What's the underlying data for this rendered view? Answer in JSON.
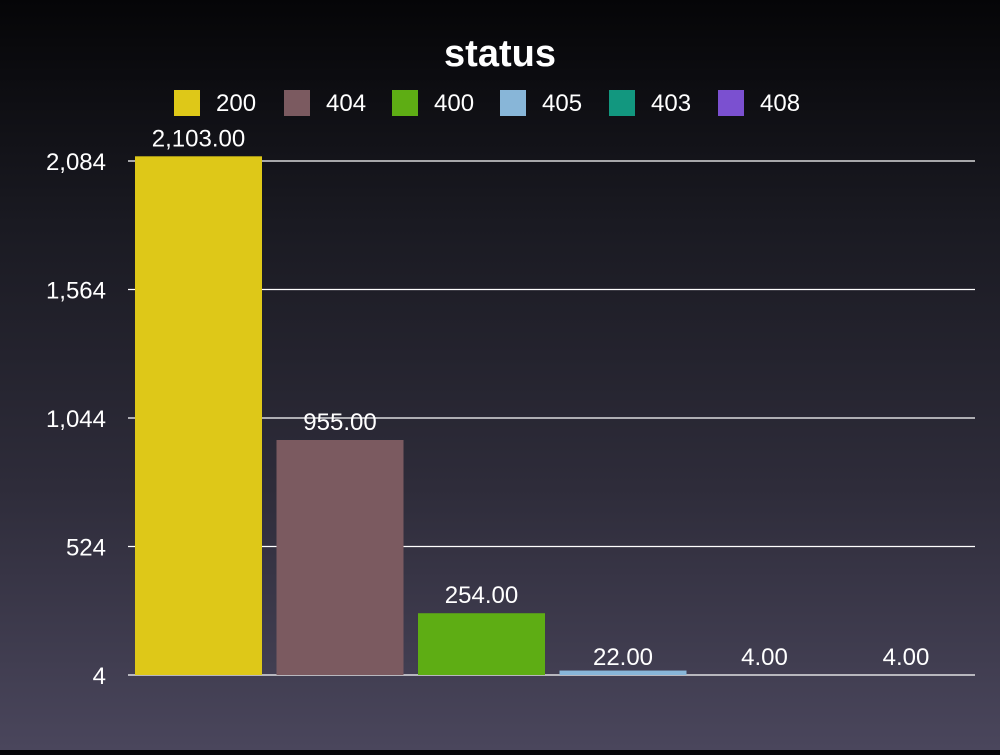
{
  "chart_data": {
    "type": "bar",
    "title": "status",
    "xlabel": "",
    "ylabel": "",
    "categories": [
      "200",
      "404",
      "400",
      "405",
      "403",
      "408"
    ],
    "values": [
      2103,
      955,
      254,
      22,
      4,
      4
    ],
    "data_labels": [
      "2,103.00",
      "955.00",
      "254.00",
      "22.00",
      "4.00",
      "4.00"
    ],
    "colors": [
      "#dec818",
      "#7b5a60",
      "#5ead14",
      "#88b6d8",
      "#12977f",
      "#7b50d0"
    ],
    "yticks": [
      4,
      524,
      1044,
      1564,
      2084
    ],
    "ytick_labels": [
      "4",
      "524",
      "1,044",
      "1,564",
      "2,084"
    ],
    "ylim": [
      4,
      2084
    ],
    "grid": true,
    "legend_position": "top"
  }
}
